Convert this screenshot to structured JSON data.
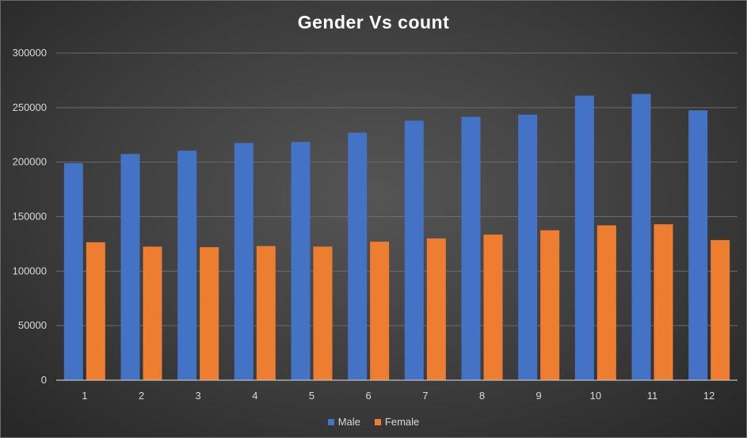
{
  "chart_data": {
    "type": "bar",
    "title": "Gender Vs count",
    "categories": [
      "1",
      "2",
      "3",
      "4",
      "5",
      "6",
      "7",
      "8",
      "9",
      "10",
      "11",
      "12"
    ],
    "series": [
      {
        "name": "Male",
        "color": "#4472c4",
        "values": [
          199000,
          207500,
          210500,
          217500,
          218500,
          227000,
          238000,
          241500,
          243500,
          261000,
          262500,
          247500
        ]
      },
      {
        "name": "Female",
        "color": "#ed7d31",
        "values": [
          126500,
          122500,
          122000,
          123000,
          122500,
          127000,
          130000,
          133500,
          137500,
          142000,
          143000,
          128500
        ]
      }
    ],
    "ylim": [
      0,
      300000
    ],
    "yticks": [
      "0",
      "50000",
      "100000",
      "150000",
      "200000",
      "250000",
      "300000"
    ],
    "grid": true,
    "legend_position": "bottom"
  }
}
